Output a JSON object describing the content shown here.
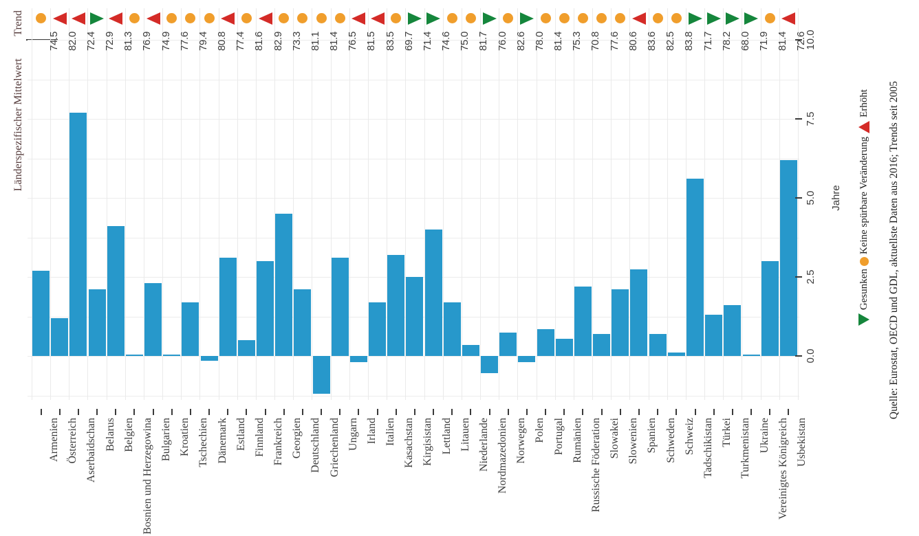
{
  "header": {
    "trend_label": "Trend",
    "mean_label": "Länderspezifischer Mittelwert"
  },
  "value_axis": {
    "label": "Jahre",
    "ticks": [
      "0.0",
      "2.5",
      "5.0",
      "7.5",
      "10.0"
    ]
  },
  "legend": {
    "decreased": "Gesunken",
    "no_change": "Keine spürbare Veränderung",
    "increased": "Erhöht"
  },
  "source": "Quelle: Eurostat, OECD und GDL, aktuellste Daten aus 2016; Trends seit 2005",
  "colors": {
    "bar": "#2798cb",
    "trend_increased": "#d42b27",
    "trend_decreased": "#15863c",
    "trend_no_change": "#f09e2c",
    "header_text": "#553b3b"
  },
  "chart_data": {
    "type": "bar",
    "orientation": "rotated 90deg counterclockwise (all text reads bottom-to-top)",
    "value_axis_label": "Jahre",
    "value_axis_ticks": [
      0.0,
      2.5,
      5.0,
      7.5,
      10.0
    ],
    "ylim": [
      -1.25,
      10.0
    ],
    "grid": true,
    "trend_note": "Trends seit 2005: increased = red triangle, no_change = orange dot, decreased = green triangle",
    "categories": [
      "Armenien",
      "Österreich",
      "Aserbaidschan",
      "Belarus",
      "Belgien",
      "Bosnien und Herzegowina",
      "Bulgarien",
      "Kroatien",
      "Tschechien",
      "Dänemark",
      "Estland",
      "Finnland",
      "Frankreich",
      "Georgien",
      "Deutschland",
      "Griechenland",
      "Ungarn",
      "Irland",
      "Italien",
      "Kasachstan",
      "Kirgisistan",
      "Lettland",
      "Litauen",
      "Niederlande",
      "Nordmazedonien",
      "Norwegen",
      "Polen",
      "Portugal",
      "Rumänien",
      "Russische Föderation",
      "Slowakei",
      "Slowenien",
      "Spanien",
      "Schweden",
      "Schweiz",
      "Tadschikistan",
      "Türkei",
      "Turkmenistan",
      "Ukraine",
      "Vereinigtes Königreich",
      "Usbekistan"
    ],
    "values": [
      2.7,
      1.2,
      7.7,
      2.1,
      4.1,
      0.05,
      2.3,
      0.05,
      1.7,
      -0.15,
      3.1,
      0.5,
      3.0,
      4.5,
      2.1,
      -1.2,
      3.1,
      -0.2,
      1.7,
      3.2,
      2.5,
      4.0,
      1.7,
      0.35,
      -0.55,
      0.75,
      -0.2,
      0.85,
      0.55,
      2.2,
      0.7,
      2.1,
      2.75,
      0.7,
      0.1,
      5.6,
      1.3,
      1.6,
      0.05,
      3.0,
      6.2
    ],
    "mean_values": [
      "74.5",
      "82.0",
      "72.4",
      "72.9",
      "81.3",
      "76.9",
      "74.9",
      "77.6",
      "79.4",
      "80.8",
      "77.4",
      "81.6",
      "82.9",
      "73.3",
      "81.1",
      "81.4",
      "76.5",
      "81.5",
      "83.5",
      "69.7",
      "71.4",
      "74.6",
      "75.0",
      "81.7",
      "76.0",
      "82.6",
      "78.0",
      "81.4",
      "75.3",
      "70.8",
      "77.6",
      "80.6",
      "83.6",
      "82.5",
      "83.8",
      "71.7",
      "78.2",
      "68.0",
      "71.9",
      "81.4",
      "72.6"
    ],
    "trend": [
      "no_change",
      "increased",
      "increased",
      "decreased",
      "increased",
      "no_change",
      "increased",
      "no_change",
      "no_change",
      "no_change",
      "increased",
      "no_change",
      "increased",
      "no_change",
      "no_change",
      "no_change",
      "no_change",
      "increased",
      "increased",
      "no_change",
      "decreased",
      "decreased",
      "no_change",
      "no_change",
      "decreased",
      "no_change",
      "decreased",
      "no_change",
      "no_change",
      "no_change",
      "no_change",
      "no_change",
      "increased",
      "no_change",
      "no_change",
      "decreased",
      "decreased",
      "decreased",
      "decreased",
      "no_change",
      "increased"
    ]
  }
}
